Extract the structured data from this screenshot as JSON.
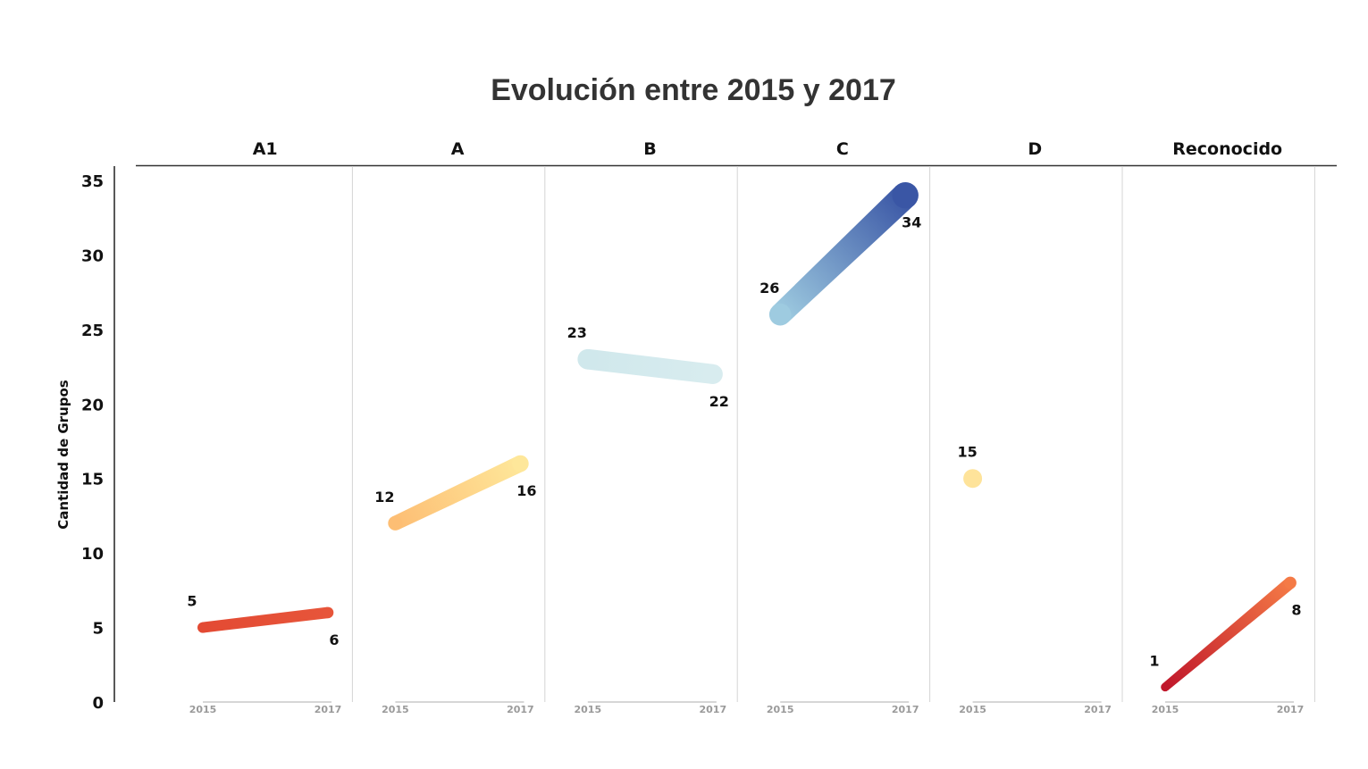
{
  "chart_data": {
    "type": "line",
    "title": "Evolución entre 2015 y 2017",
    "ylabel": "Cantidad de Grupos",
    "ylim": [
      0,
      35
    ],
    "yticks": [
      "0",
      "5",
      "10",
      "15",
      "20",
      "25",
      "30",
      "35"
    ],
    "x_ticks": [
      "2015",
      "2017"
    ],
    "grid": false,
    "facets": [
      {
        "name": "A1",
        "values": [
          5,
          6
        ],
        "labels": [
          "5",
          "6"
        ],
        "colors": [
          "#e34a33",
          "#e7553a"
        ]
      },
      {
        "name": "A",
        "values": [
          12,
          16
        ],
        "labels": [
          "12",
          "16"
        ],
        "colors": [
          "#fdbe74",
          "#fee79a"
        ]
      },
      {
        "name": "B",
        "values": [
          23,
          22
        ],
        "labels": [
          "23",
          "22"
        ],
        "colors": [
          "#d0e8ec",
          "#d8ecef"
        ]
      },
      {
        "name": "C",
        "values": [
          26,
          34
        ],
        "labels": [
          "26",
          "34"
        ],
        "colors": [
          "#9ecbe0",
          "#3a56a5"
        ]
      },
      {
        "name": "D",
        "values": [
          15,
          null
        ],
        "labels": [
          "15",
          ""
        ],
        "colors": [
          "#fee39a",
          "#fee39a"
        ]
      },
      {
        "name": "Reconocido",
        "values": [
          1,
          8
        ],
        "labels": [
          "1",
          "8"
        ],
        "colors": [
          "#c0172b",
          "#f47a46"
        ]
      }
    ]
  }
}
